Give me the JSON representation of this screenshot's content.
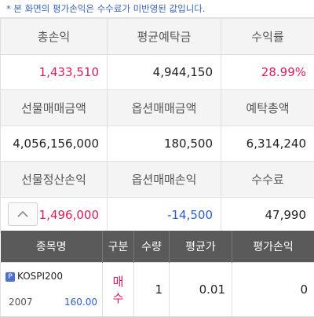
{
  "notice": "* 본 화면의 평가손익은 수수료가 미반영된 값입니다.",
  "summary": {
    "row1": {
      "labels": [
        "총손익",
        "평균예탁금",
        "수익률"
      ],
      "values": [
        "1,433,510",
        "4,944,150",
        "28.99%"
      ]
    },
    "row2": {
      "labels": [
        "선물매매금액",
        "옵션매매금액",
        "예탁총액"
      ],
      "values": [
        "4,056,156,000",
        "180,500",
        "6,314,240"
      ]
    },
    "row3": {
      "labels": [
        "선물정산손익",
        "옵션매매손익",
        "수수료"
      ],
      "values": [
        "1,496,000",
        "-14,500",
        "47,990"
      ]
    }
  },
  "colors": {
    "positive": "#d91c5c",
    "negative": "#2a5bd7",
    "header_bg": "#5a5a5a",
    "notice": "#3a63b8"
  },
  "up_button_icon": "chevron-up-icon",
  "holdings": {
    "headers": [
      "종목명",
      "구분",
      "수량",
      "평균가",
      "평가손익"
    ],
    "rows": [
      {
        "badge": "P",
        "name": "KOSPI200",
        "code": "2007",
        "strike": "160.00",
        "type": "매수",
        "qty": "1",
        "avg_price": "0.01",
        "eval_pl": "0"
      }
    ]
  }
}
